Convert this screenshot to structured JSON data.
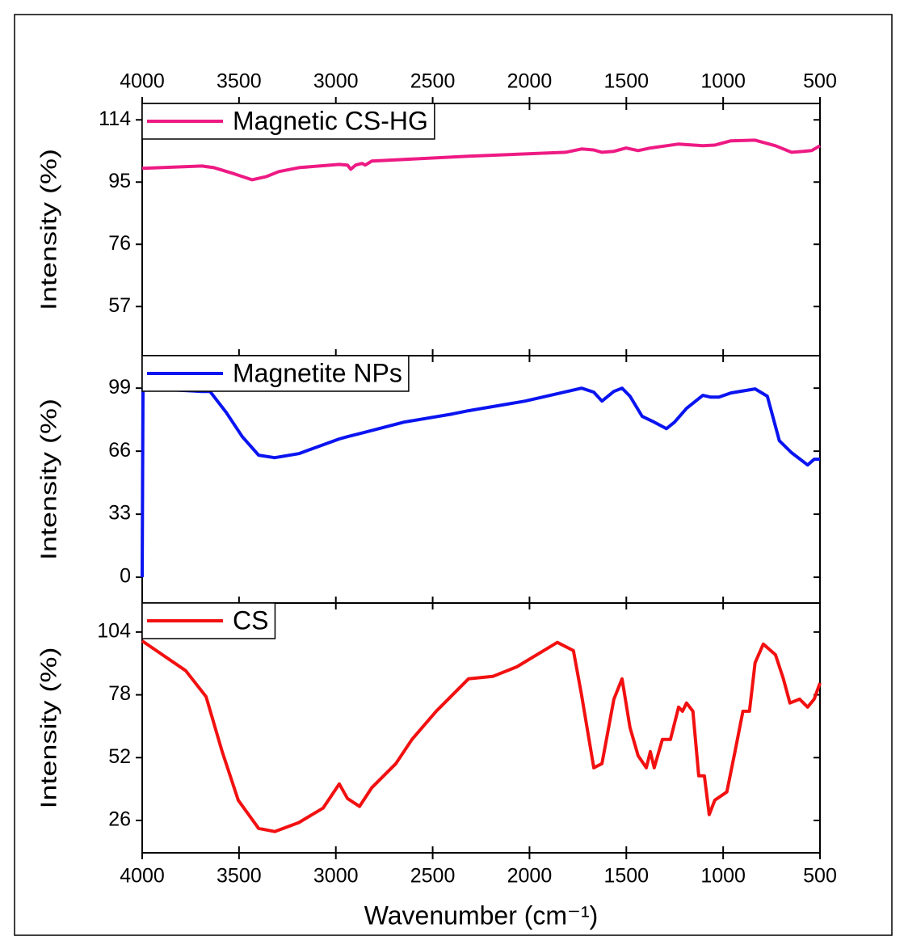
{
  "chart_data": [
    {
      "type": "line",
      "ylabel": "Intensity (%)",
      "xlim": [
        4000,
        500
      ],
      "xticks": [
        4000,
        3500,
        3000,
        2500,
        2000,
        1500,
        1000,
        500
      ],
      "xtick_labels": "top",
      "ylim": [
        42,
        119
      ],
      "yticks": [
        114,
        95,
        76,
        57
      ],
      "legend": "upper left",
      "x": [
        4000,
        3691,
        3629,
        3524,
        3433,
        3358,
        3295,
        3191,
        2982,
        2940,
        2923,
        2898,
        2865,
        2848,
        2815,
        2315,
        1814,
        1731,
        1668,
        1626,
        1564,
        1501,
        1439,
        1376,
        1230,
        1105,
        1043,
        960,
        835,
        730,
        647,
        585,
        543,
        500
      ],
      "series": [
        {
          "name": "Magnetic CS-HG",
          "color": "#ee1a84",
          "values": [
            99.2,
            99.9,
            99.4,
            97.5,
            95.7,
            96.7,
            98.2,
            99.4,
            100.4,
            100.2,
            98.9,
            100.2,
            100.7,
            100.2,
            101.4,
            102.9,
            104.1,
            105.1,
            104.8,
            104.1,
            104.4,
            105.4,
            104.6,
            105.4,
            106.6,
            106.1,
            106.3,
            107.6,
            107.8,
            106.1,
            104.1,
            104.4,
            104.6,
            106.1
          ]
        }
      ]
    },
    {
      "type": "line",
      "ylabel": "Intensity (%)",
      "xlim": [
        4000,
        500
      ],
      "xticks": [
        4000,
        3500,
        3000,
        2500,
        2000,
        1500,
        1000,
        500
      ],
      "xtick_labels": "none",
      "ylim": [
        -13.5,
        116
      ],
      "yticks": [
        99,
        66,
        33,
        0
      ],
      "legend": "upper left",
      "x": [
        4000,
        3996,
        3691,
        3650,
        3566,
        3483,
        3399,
        3316,
        3191,
        2982,
        2940,
        2857,
        2648,
        2398,
        2315,
        2023,
        1731,
        1668,
        1626,
        1564,
        1522,
        1481,
        1418,
        1356,
        1293,
        1251,
        1189,
        1105,
        1064,
        1022,
        960,
        835,
        772,
        710,
        647,
        564,
        530,
        500
      ],
      "series": [
        {
          "name": "Magnetite NPs",
          "color": "#0a14f0",
          "values": [
            0,
            99,
            97.3,
            97.3,
            86.3,
            73.6,
            63.9,
            62.6,
            64.7,
            72.4,
            73.6,
            75.7,
            81.2,
            85.5,
            87.2,
            92.2,
            99,
            96.9,
            92.2,
            97.3,
            99,
            94.8,
            84.2,
            81.2,
            77.8,
            81.2,
            88.4,
            95.2,
            94.3,
            94.3,
            96.5,
            98.6,
            94.8,
            71.5,
            65.2,
            58.8,
            61.8,
            61.8
          ]
        }
      ]
    },
    {
      "type": "line",
      "ylabel": "Intensity (%)",
      "xlabel": "Wavenumber (cm⁻¹)",
      "xlim": [
        4000,
        500
      ],
      "xticks": [
        4000,
        3500,
        3000,
        2500,
        2000,
        1500,
        1000,
        500
      ],
      "xtick_labels": "bottom",
      "ylim": [
        12.6,
        116
      ],
      "yticks": [
        104,
        78,
        52,
        26
      ],
      "legend": "upper left",
      "x": [
        4000,
        3775,
        3670,
        3587,
        3504,
        3399,
        3316,
        3191,
        3066,
        2982,
        2940,
        2878,
        2815,
        2690,
        2607,
        2482,
        2315,
        2190,
        2065,
        1856,
        1773,
        1731,
        1668,
        1626,
        1564,
        1522,
        1481,
        1439,
        1397,
        1376,
        1356,
        1314,
        1272,
        1230,
        1210,
        1189,
        1156,
        1126,
        1097,
        1072,
        1043,
        981,
        939,
        898,
        864,
        835,
        793,
        730,
        689,
        655,
        605,
        564,
        530,
        500
      ],
      "series": [
        {
          "name": "CS",
          "color": "#f21010",
          "values": [
            100.3,
            88,
            77.2,
            54.5,
            34.4,
            22.7,
            21.4,
            25.1,
            31.1,
            41.1,
            35.1,
            31.8,
            39.5,
            49.5,
            59.5,
            71.2,
            84.6,
            85.6,
            89.6,
            99.7,
            96.3,
            77.9,
            47.8,
            49.5,
            76.2,
            84.6,
            64.5,
            52.8,
            47.8,
            54.5,
            47.8,
            59.5,
            59.5,
            72.9,
            71.2,
            74.6,
            71.2,
            44.5,
            44.5,
            28.4,
            34.4,
            37.8,
            54.5,
            71.2,
            71.2,
            91.3,
            99,
            94.6,
            84.6,
            74.6,
            76.2,
            72.9,
            76.2,
            82.9
          ]
        }
      ]
    }
  ]
}
